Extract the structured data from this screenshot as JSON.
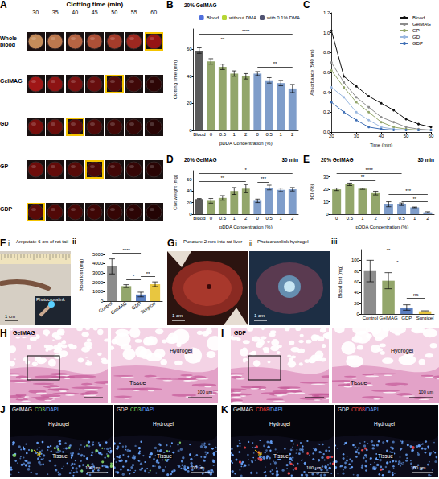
{
  "chart_data": [
    {
      "panel": "B",
      "type": "bar",
      "annotations": [
        "20% GelMAG"
      ],
      "categories": [
        "Blood",
        "0",
        "0.5",
        "1",
        "2",
        "0",
        "0.5",
        "1",
        "2"
      ],
      "series": [
        {
          "name": "Blood",
          "color": "#5b5b5b",
          "values": [
            59,
            null,
            null,
            null,
            null,
            null,
            null,
            null,
            null
          ],
          "errors": [
            2,
            null,
            null,
            null,
            null,
            null,
            null,
            null,
            null
          ]
        },
        {
          "name": "without DMA",
          "color": "#93a66b",
          "values": [
            null,
            51,
            47,
            42,
            40,
            null,
            null,
            null,
            null
          ],
          "errors": [
            null,
            2,
            2,
            2,
            2,
            null,
            null,
            null,
            null
          ]
        },
        {
          "name": "with 0.1% DMA",
          "color": "#7f9dca",
          "values": [
            null,
            null,
            null,
            null,
            null,
            42,
            37,
            35,
            31
          ],
          "errors": [
            null,
            null,
            null,
            null,
            null,
            1.5,
            2,
            2,
            3
          ]
        }
      ],
      "xlabel": "pDDA Concentration (%)",
      "ylabel": "Clotting time (min)",
      "ylim": [
        0,
        75
      ],
      "yticks": [
        0,
        20,
        40,
        60
      ],
      "legend": "top",
      "grid": false,
      "brackets": [
        {
          "from": 0,
          "to": 8,
          "y": 71,
          "label": "****"
        },
        {
          "from": 0,
          "to": 4,
          "y": 65,
          "label": "**"
        },
        {
          "from": 5,
          "to": 8,
          "y": 47,
          "label": "**"
        }
      ]
    },
    {
      "panel": "C",
      "type": "line",
      "x": [
        20,
        25,
        30,
        35,
        40,
        45,
        50,
        55,
        60
      ],
      "xlabel": "Time (min)",
      "ylabel": "Absorbance (540 nm)",
      "xlim": [
        20,
        60
      ],
      "xticks": [
        20,
        30,
        40,
        50,
        60
      ],
      "ylim": [
        0,
        1.2
      ],
      "yticks": [
        {
          "value": 0,
          "label": "0.0"
        },
        0.2,
        0.4,
        0.6,
        0.8,
        {
          "value": 1,
          "label": "1.0"
        },
        1.2
      ],
      "legend": "top-right",
      "grid": false,
      "marker": "circle",
      "series": [
        {
          "name": "Blood",
          "color": "#111111",
          "values": [
            1.02,
            0.56,
            0.46,
            0.36,
            0.29,
            0.22,
            0.13,
            0.08,
            0.05
          ]
        },
        {
          "name": "GelMAG",
          "color": "#8c8c8c",
          "values": [
            0.7,
            0.5,
            0.35,
            0.25,
            0.15,
            0.1,
            0.05,
            0.03,
            0.02
          ]
        },
        {
          "name": "GP",
          "color": "#93a66b",
          "values": [
            0.62,
            0.45,
            0.3,
            0.2,
            0.1,
            0.05,
            0.03,
            0.02,
            0.02
          ]
        },
        {
          "name": "GD",
          "color": "#9ab8e0",
          "values": [
            0.45,
            0.35,
            0.2,
            0.12,
            0.05,
            0.03,
            0.02,
            0.02,
            0.02
          ]
        },
        {
          "name": "GDP",
          "color": "#3f6fb5",
          "values": [
            0.3,
            0.2,
            0.12,
            0.05,
            0.03,
            0.02,
            0.02,
            0.02,
            0.02
          ]
        }
      ]
    },
    {
      "panel": "D",
      "type": "bar",
      "annotations": [
        "20% GelMAG",
        "30 min"
      ],
      "categories": [
        "Blood",
        "0",
        "0.5",
        "1",
        "2",
        "0",
        "0.5",
        "1",
        "2"
      ],
      "values": [
        26,
        23,
        28,
        40,
        44,
        23,
        46,
        42,
        43
      ],
      "errors": [
        1,
        4,
        4,
        6,
        7,
        3,
        4,
        3,
        3
      ],
      "colors": [
        "#5b5b5b",
        "#93a66b",
        "#93a66b",
        "#93a66b",
        "#93a66b",
        "#7f9dca",
        "#7f9dca",
        "#7f9dca",
        "#7f9dca"
      ],
      "xlabel": "pDDA Concentration (%)",
      "ylabel": "Clot weight (mg)",
      "ylim": [
        0,
        75
      ],
      "yticks": [
        0,
        20,
        40,
        60
      ],
      "grid": false,
      "brackets": [
        {
          "from": 0,
          "to": 4,
          "y": 57,
          "label": "**"
        },
        {
          "from": 5,
          "to": 6,
          "y": 55,
          "label": "***"
        },
        {
          "from": 0,
          "to": 8,
          "y": 71,
          "label": "*"
        }
      ]
    },
    {
      "panel": "E",
      "type": "bar",
      "annotations": [
        "20% GelMAG",
        "30 min"
      ],
      "categories": [
        "0",
        "0.5",
        "1",
        "2",
        "0",
        "0.5",
        "1",
        "2"
      ],
      "values": [
        20,
        24,
        20.5,
        17,
        8,
        8,
        5.5,
        1.5
      ],
      "errors": [
        1,
        1,
        0.5,
        1.5,
        2,
        1,
        0.3,
        0.5
      ],
      "colors": [
        "#93a66b",
        "#93a66b",
        "#93a66b",
        "#93a66b",
        "#7f9dca",
        "#7f9dca",
        "#7f9dca",
        "#7f9dca"
      ],
      "xlabel": "pDDA Concentration (%)",
      "ylabel": "BCI (%)",
      "ylim": [
        0,
        35
      ],
      "yticks": [
        0,
        10,
        20,
        30
      ],
      "grid": false,
      "brackets": [
        {
          "from": 1,
          "to": 3,
          "y": 27,
          "label": "**"
        },
        {
          "from": 0,
          "to": 5,
          "y": 33,
          "label": "****"
        },
        {
          "from": 4,
          "to": 7,
          "y": 16,
          "label": "***"
        },
        {
          "from": 5,
          "to": 7,
          "y": 10,
          "label": "**"
        }
      ]
    },
    {
      "panel": "ii",
      "type": "bar",
      "categories": [
        "Control",
        "GelMAG",
        "GDP",
        "Surgicel"
      ],
      "values": [
        3700,
        1600,
        700,
        1800
      ],
      "errors": [
        800,
        150,
        250,
        250
      ],
      "colors": [
        "#8c8c8c",
        "#93a66b",
        "#5b7fc0",
        "#e8c640"
      ],
      "ylabel": "Blood lost (mg)",
      "ylim": [
        0,
        5500
      ],
      "yticks": [
        0,
        1000,
        2000,
        3000,
        4000,
        5000
      ],
      "grid": false,
      "brackets": [
        {
          "from": 0,
          "to": 2,
          "y": 5100,
          "label": "****"
        },
        {
          "from": 1,
          "to": 2,
          "y": 2300,
          "label": "*"
        },
        {
          "from": 2,
          "to": 3,
          "y": 2600,
          "label": "**"
        }
      ]
    },
    {
      "panel": "iii",
      "type": "bar",
      "categories": [
        "Control",
        "GelMAG",
        "GDP",
        "Surgicel"
      ],
      "values": [
        80,
        62,
        12,
        5
      ],
      "errors": [
        20,
        15,
        5,
        1
      ],
      "colors": [
        "#8c8c8c",
        "#93a66b",
        "#5b7fc0",
        "#e8c640"
      ],
      "ylabel": "Blood lost (mg)",
      "ylim": [
        0,
        120
      ],
      "yticks": [
        0,
        20,
        40,
        60,
        80,
        100
      ],
      "grid": false,
      "brackets": [
        {
          "from": 0,
          "to": 2,
          "y": 112,
          "label": "**"
        },
        {
          "from": 1,
          "to": 2,
          "y": 90,
          "label": "*"
        },
        {
          "from": 2,
          "to": 3,
          "y": 30,
          "label": "ns"
        }
      ]
    }
  ],
  "figure": {
    "A": {
      "panel": "A",
      "header": "Clotting time (min)",
      "columns": [
        30,
        35,
        40,
        45,
        50,
        55,
        60
      ],
      "rows": [
        {
          "label": "Whole blood",
          "highlight": 60
        },
        {
          "label": "GelMAG",
          "highlight": 50
        },
        {
          "label": "GD",
          "highlight": 40
        },
        {
          "label": "GP",
          "highlight": 45
        },
        {
          "label": "GDP",
          "highlight": 30
        }
      ]
    },
    "F": {
      "panel": "F",
      "sub": "i",
      "caption": "Amputate 6 cm of rat tail",
      "inset": "Photocrosslink",
      "scale": "1 cm"
    },
    "G": [
      {
        "panel": "G",
        "sub": "i",
        "caption": "Puncture 2 mm into rat liver",
        "scale": "1 cm"
      },
      {
        "sub": "ii",
        "caption": "Photocrosslink hydrogel",
        "scale": "1 cm"
      }
    ],
    "histology": [
      {
        "panel": "H",
        "title": "GelMAG",
        "regions": [
          "Hydrogel",
          "Tissue"
        ],
        "scale": "100 µm"
      },
      {
        "panel": "I",
        "title": "GDP",
        "regions": [
          "Hydrogel",
          "Tissue"
        ],
        "scale": "100 µm"
      }
    ],
    "fluorescence": [
      {
        "panel": "J",
        "stain": [
          "CD3",
          "/DAPI"
        ],
        "stain_colors": [
          "#8be06a",
          "#6aa6ff"
        ],
        "images": [
          "GelMAG",
          "GDP"
        ],
        "regions": [
          "Hydrogel",
          "Tissue"
        ],
        "scale": "100 µm"
      },
      {
        "panel": "K",
        "stain": [
          "CD68",
          "/DAPI"
        ],
        "stain_colors": [
          "#ff4a4a",
          "#6aa6ff"
        ],
        "images": [
          "GelMAG",
          "GDP"
        ],
        "regions": [
          "Hydrogel",
          "Tissue"
        ],
        "scale": "100 µm"
      }
    ]
  }
}
